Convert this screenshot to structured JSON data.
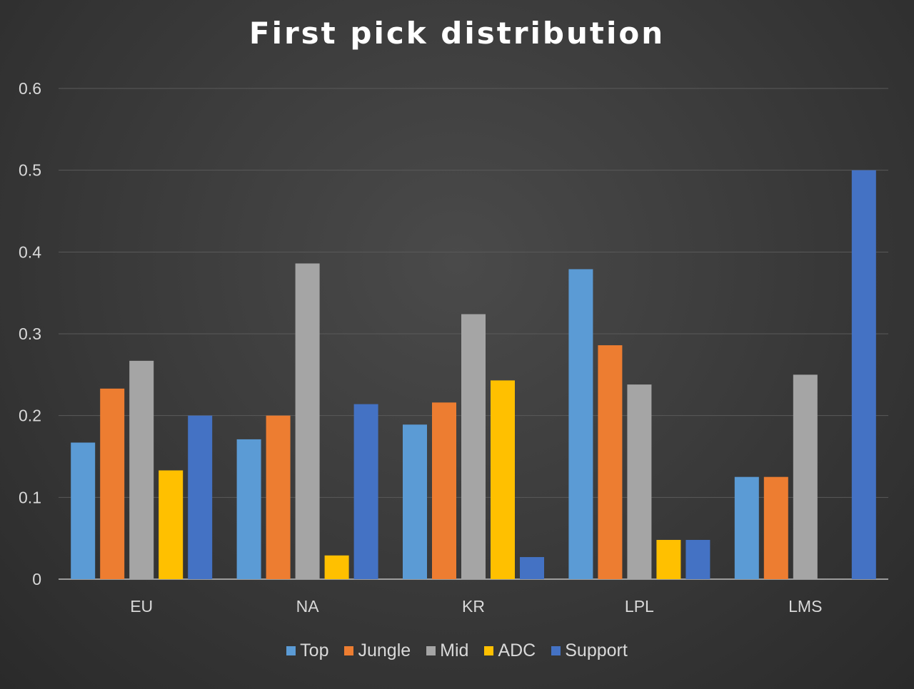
{
  "chart_data": {
    "type": "bar",
    "title": "First pick distribution",
    "xlabel": "",
    "ylabel": "",
    "categories": [
      "EU",
      "NA",
      "KR",
      "LPL",
      "LMS"
    ],
    "yticks": [
      "0",
      "0.1",
      "0.2",
      "0.3",
      "0.4",
      "0.5",
      "0.6"
    ],
    "ylim": [
      0,
      0.6
    ],
    "grid": true,
    "legend_position": "bottom",
    "series": [
      {
        "name": "Top",
        "color": "#5b9bd5",
        "values": [
          0.167,
          0.171,
          0.189,
          0.379,
          0.125
        ]
      },
      {
        "name": "Jungle",
        "color": "#ed7d31",
        "values": [
          0.233,
          0.2,
          0.216,
          0.286,
          0.125
        ]
      },
      {
        "name": "Mid",
        "color": "#a5a5a5",
        "values": [
          0.267,
          0.386,
          0.324,
          0.238,
          0.25
        ]
      },
      {
        "name": "ADC",
        "color": "#ffc000",
        "values": [
          0.133,
          0.029,
          0.243,
          0.048,
          0
        ]
      },
      {
        "name": "Support",
        "color": "#4472c4",
        "values": [
          0.2,
          0.214,
          0.027,
          0.048,
          0.5
        ]
      }
    ]
  }
}
